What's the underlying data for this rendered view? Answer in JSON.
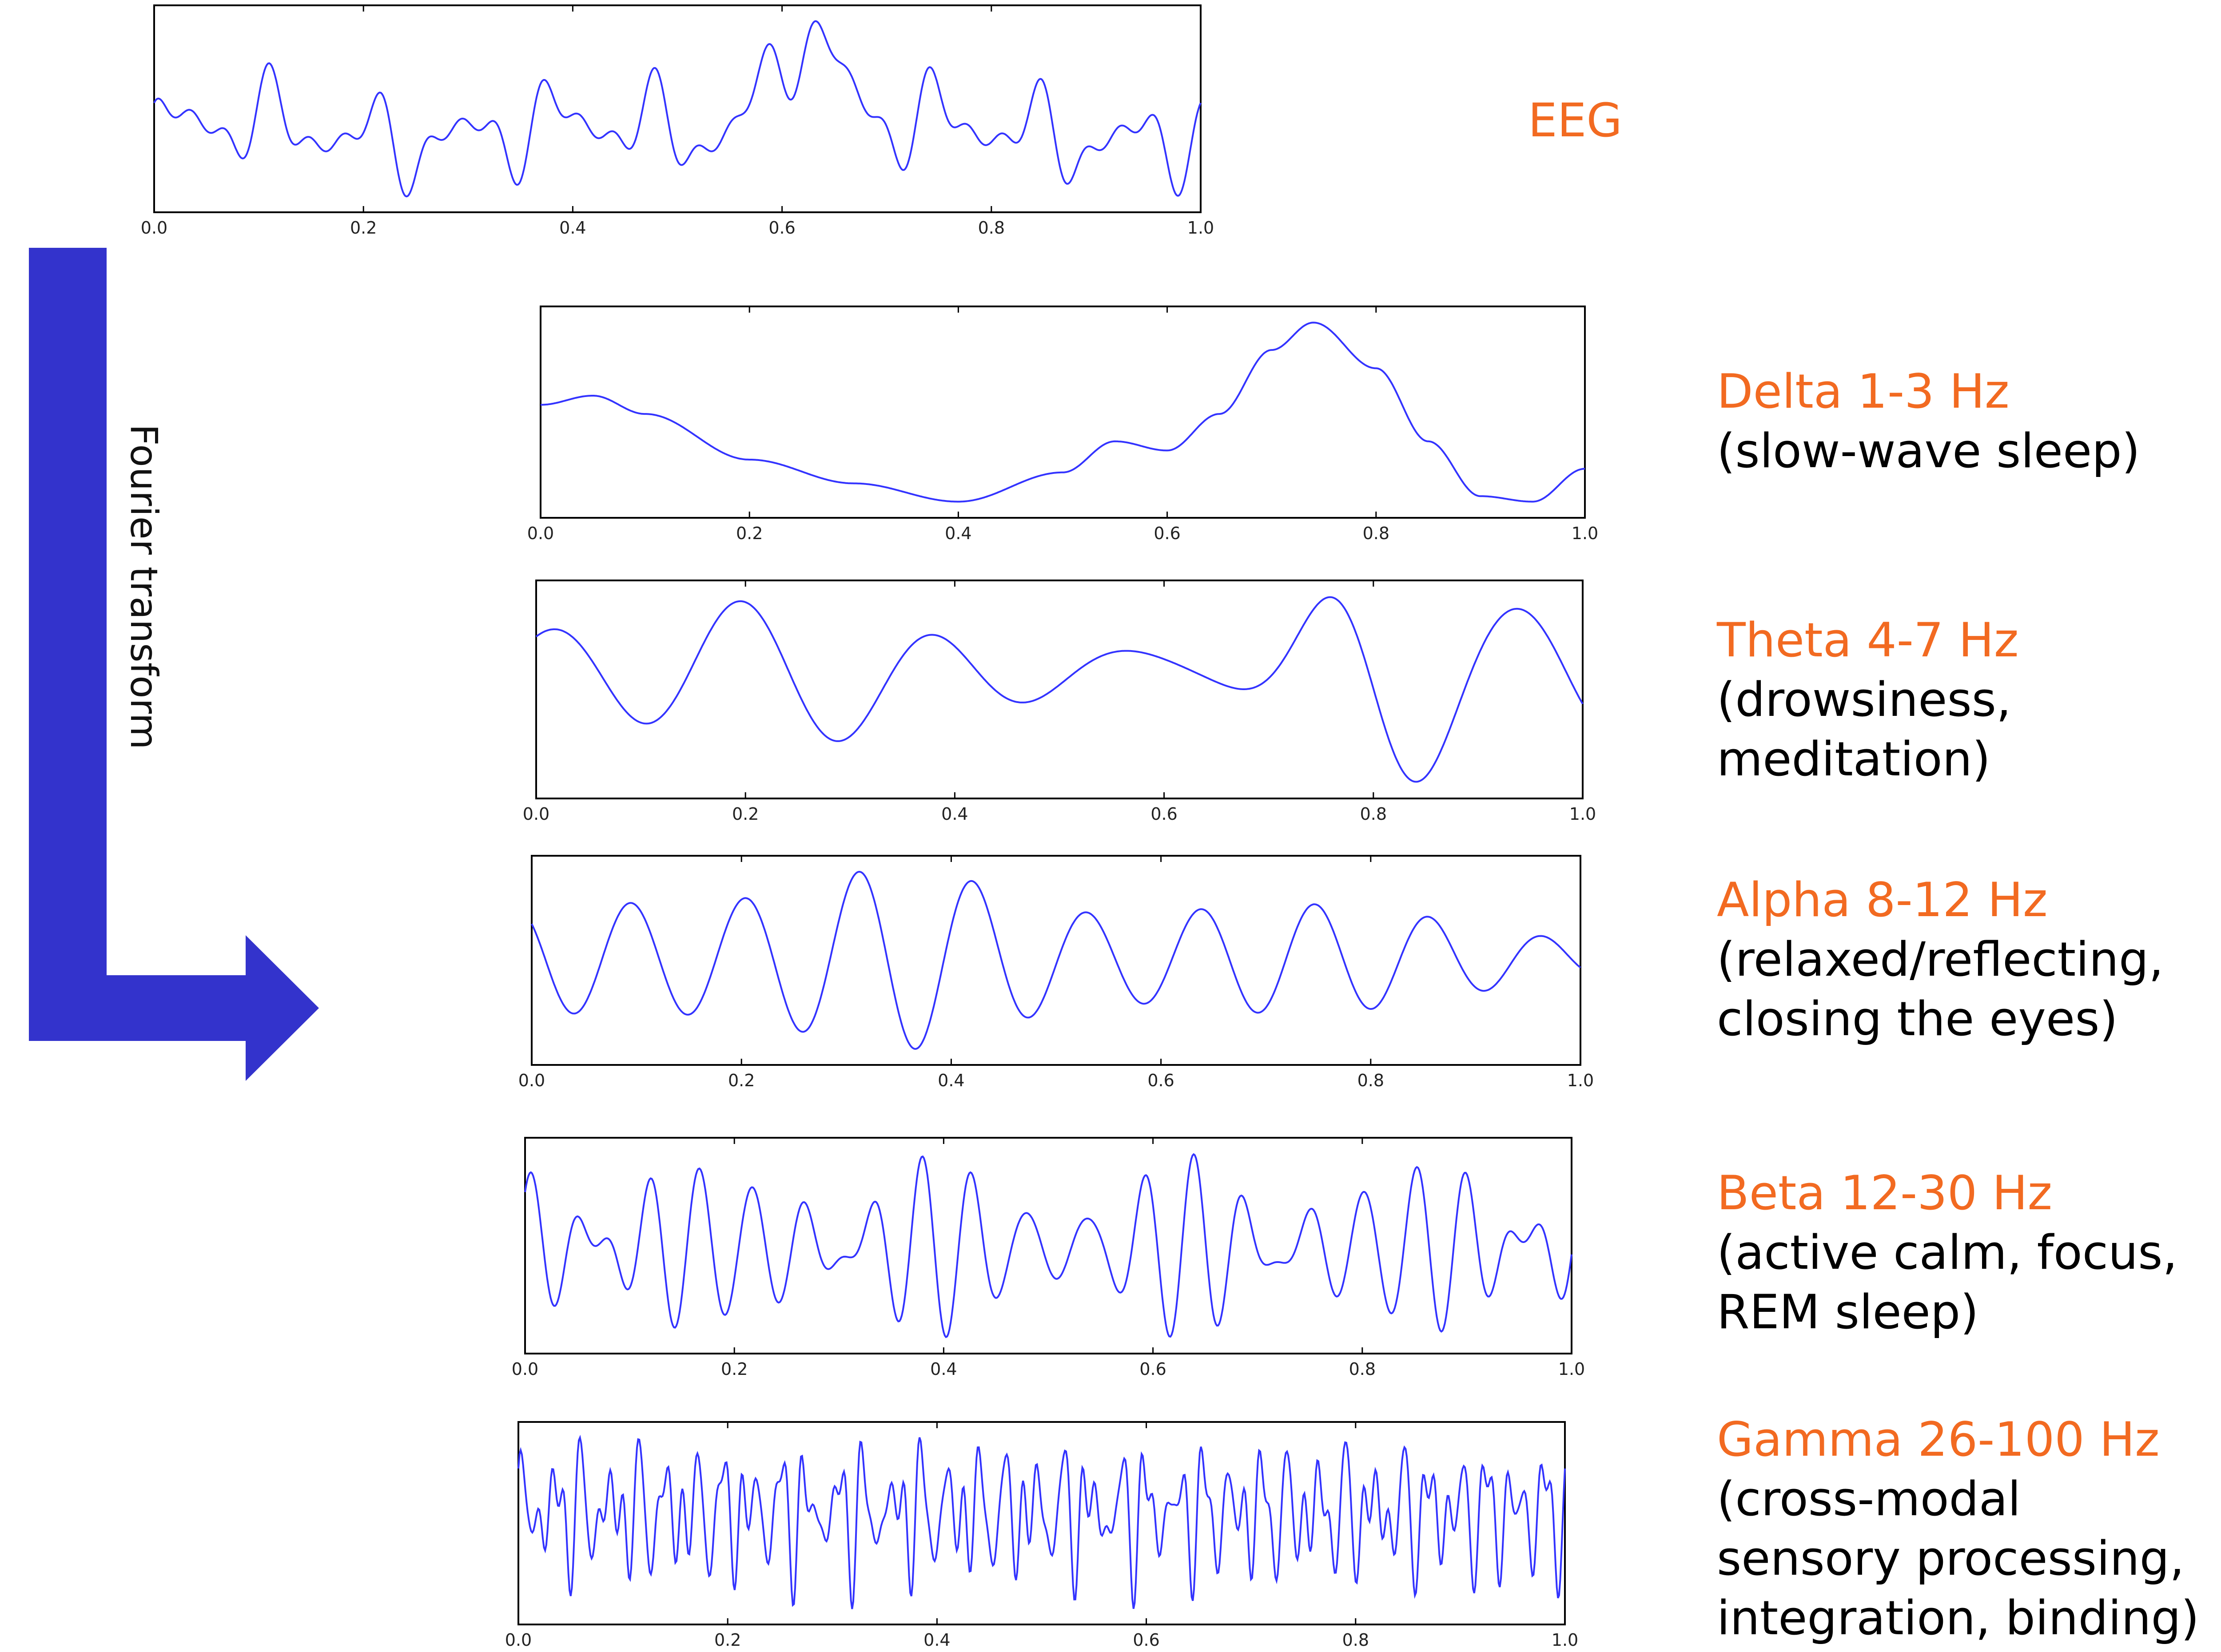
{
  "eeg_label": "EEG",
  "fourier_label": "Fourier transform",
  "arrow_color": "#3333cc",
  "line_color": "#3333ff",
  "label_color": "#f26a21",
  "x_ticks": [
    "0.0",
    "0.2",
    "0.4",
    "0.6",
    "0.8",
    "1.0"
  ],
  "bands": [
    {
      "name": "Delta 1-3 Hz",
      "desc1": "(slow-wave sleep)",
      "desc2": "",
      "desc3": ""
    },
    {
      "name": "Theta 4-7 Hz",
      "desc1": "(drowsiness,",
      "desc2": "meditation)",
      "desc3": ""
    },
    {
      "name": "Alpha 8-12 Hz",
      "desc1": "(relaxed/reflecting,",
      "desc2": "closing the eyes)",
      "desc3": ""
    },
    {
      "name": "Beta 12-30 Hz",
      "desc1": "(active calm, focus,",
      "desc2": "REM sleep)",
      "desc3": ""
    },
    {
      "name": "Gamma 26-100 Hz",
      "desc1": "(cross-modal",
      "desc2": "sensory processing,",
      "desc3": "integration, binding)"
    }
  ],
  "chart_data": [
    {
      "type": "line",
      "name": "EEG",
      "x_range": [
        0,
        1
      ],
      "ticks": [
        0.0,
        0.2,
        0.4,
        0.6,
        0.8,
        1.0
      ],
      "peak_x": 0.62,
      "waveform": "composite"
    },
    {
      "type": "line",
      "name": "Delta",
      "x_range": [
        0,
        1
      ],
      "ticks": [
        0.0,
        0.2,
        0.4,
        0.6,
        0.8,
        1.0
      ],
      "x": [
        0.0,
        0.05,
        0.1,
        0.2,
        0.3,
        0.4,
        0.5,
        0.55,
        0.6,
        0.65,
        0.7,
        0.74,
        0.8,
        0.85,
        0.9,
        0.95,
        1.0
      ],
      "y": [
        0.55,
        0.6,
        0.5,
        0.25,
        0.12,
        0.02,
        0.18,
        0.35,
        0.3,
        0.5,
        0.85,
        1.0,
        0.75,
        0.35,
        0.05,
        0.02,
        0.2
      ]
    },
    {
      "type": "line",
      "name": "Theta",
      "x_range": [
        0,
        1
      ],
      "ticks": [
        0.0,
        0.2,
        0.4,
        0.6,
        0.8,
        1.0
      ]
    },
    {
      "type": "line",
      "name": "Alpha",
      "x_range": [
        0,
        1
      ],
      "ticks": [
        0.0,
        0.2,
        0.4,
        0.6,
        0.8,
        1.0
      ]
    },
    {
      "type": "line",
      "name": "Beta",
      "x_range": [
        0,
        1
      ],
      "ticks": [
        0.0,
        0.2,
        0.4,
        0.6,
        0.8,
        1.0
      ]
    },
    {
      "type": "line",
      "name": "Gamma",
      "x_range": [
        0,
        1
      ],
      "ticks": [
        0.0,
        0.2,
        0.4,
        0.6,
        0.8,
        1.0
      ]
    }
  ]
}
